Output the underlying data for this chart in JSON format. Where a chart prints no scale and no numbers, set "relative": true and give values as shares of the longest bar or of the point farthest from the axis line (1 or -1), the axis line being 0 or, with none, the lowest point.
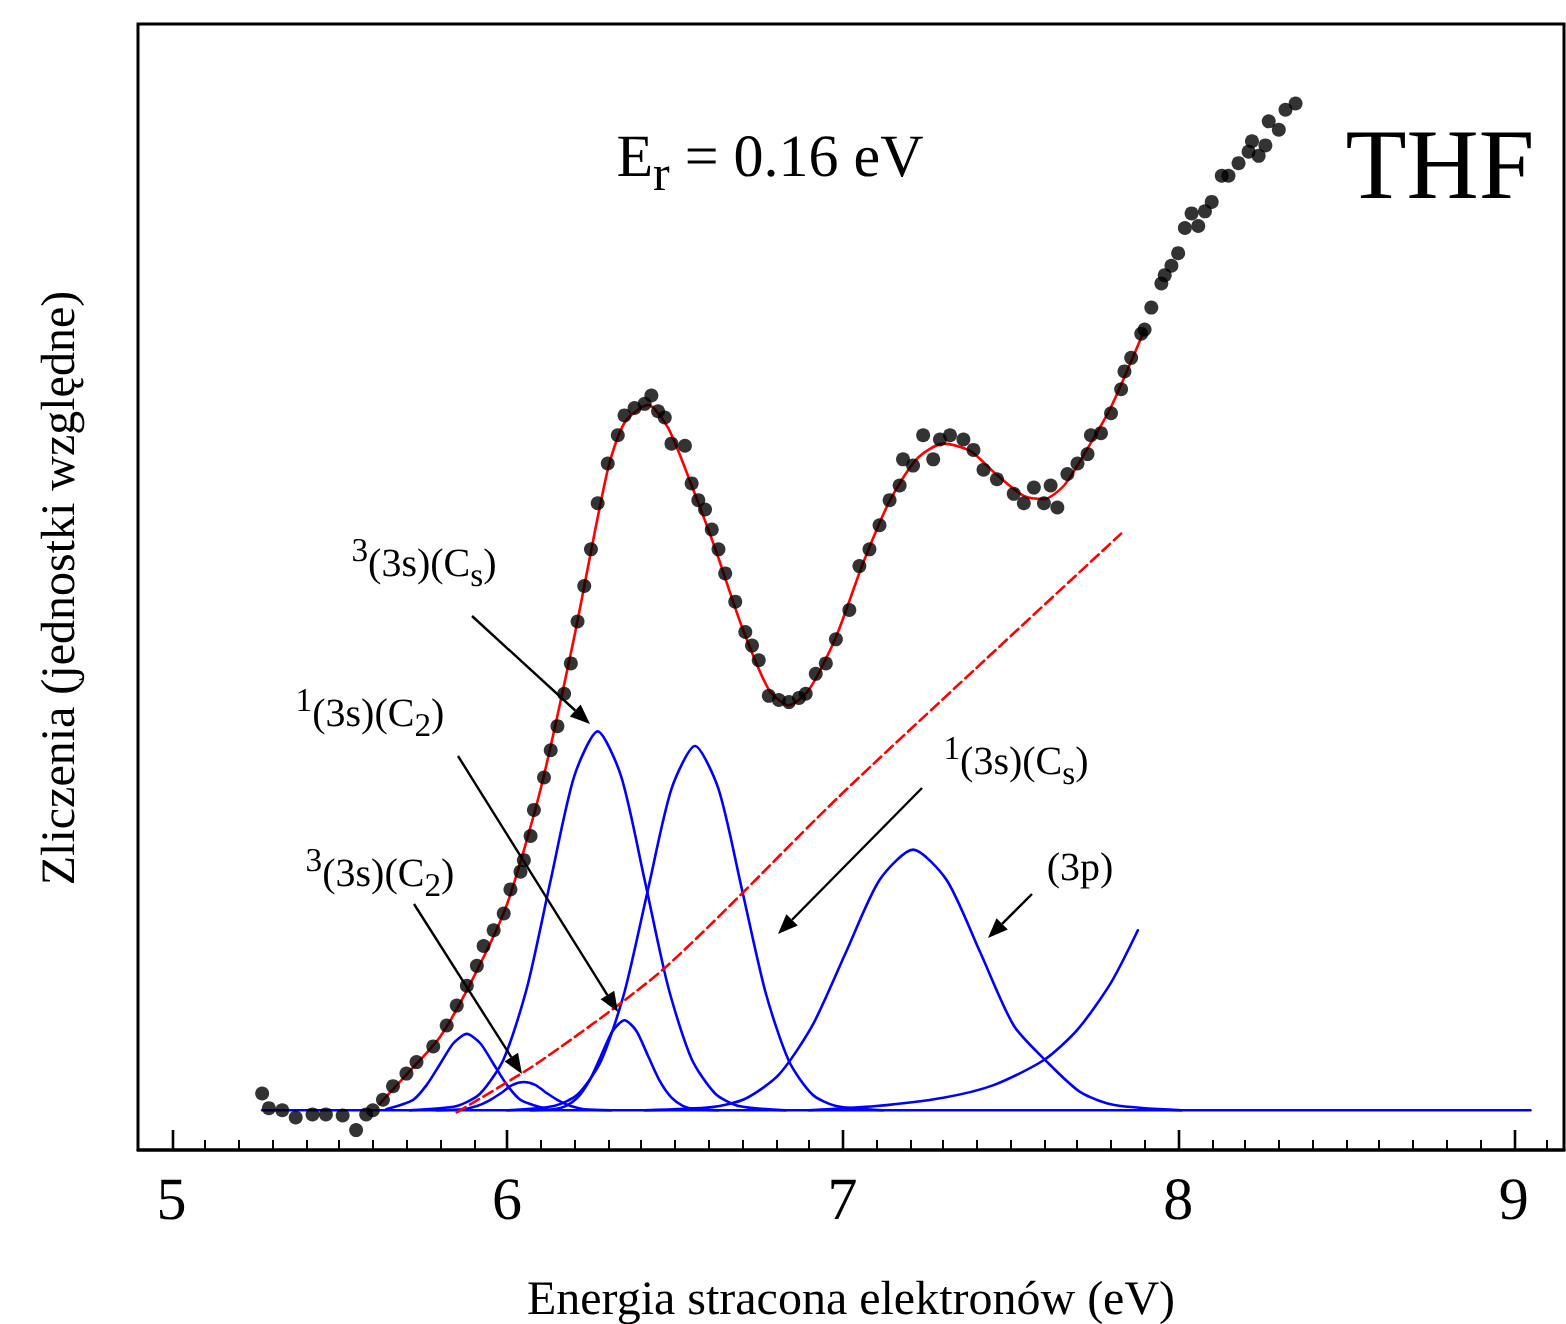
{
  "chart_data": {
    "type": "scatter",
    "relative": true,
    "xlabel": "Energia stracona elektronów (eV)",
    "ylabel": "Zliczenia (jednostki względne)",
    "xlim": [
      4.9,
      9.15
    ],
    "xticks": [
      5,
      6,
      7,
      8,
      9
    ],
    "grid": false,
    "annotations": [
      "E$_{r}$ = 0.16 eV",
      "THF",
      "$^{3}$(3s)(C$_{s}$)",
      "$^{1}$(3s)(C$_{2}$)",
      "$^{3}$(3s)(C$_{2}$)",
      "$^{1}$(3s)(C$_{s}$)",
      "(3p)"
    ],
    "series": [
      {
        "type": "line",
        "color": "#0000ff",
        "marker": "none",
        "x": [
          5.27,
          9.05
        ],
        "values": [
          0.038,
          0.038
        ]
      },
      {
        "type": "line",
        "color": "#0000ff",
        "marker": "none",
        "x": [
          5.64,
          5.72,
          5.76,
          5.8,
          5.84,
          5.88,
          5.92,
          5.96,
          6.0,
          6.04,
          6.12
        ],
        "values": [
          0.039,
          0.048,
          0.062,
          0.082,
          0.102,
          0.111,
          0.102,
          0.082,
          0.062,
          0.048,
          0.039
        ]
      },
      {
        "type": "line",
        "color": "#0000ff",
        "marker": "none",
        "x": [
          5.79,
          5.87,
          5.91,
          5.945,
          5.98,
          6.015,
          6.05,
          6.085,
          6.12,
          6.155,
          6.19,
          6.23,
          6.31
        ],
        "values": [
          0.038,
          0.039,
          0.042,
          0.047,
          0.054,
          0.062,
          0.065,
          0.062,
          0.054,
          0.047,
          0.042,
          0.039,
          0.038
        ]
      },
      {
        "type": "line",
        "color": "#0000ff",
        "marker": "none",
        "x": [
          5.71,
          5.85,
          5.92,
          5.99,
          6.06,
          6.13,
          6.2,
          6.27,
          6.34,
          6.41,
          6.48,
          6.55,
          6.62,
          6.69,
          6.83
        ],
        "values": [
          0.038,
          0.042,
          0.054,
          0.087,
          0.156,
          0.258,
          0.357,
          0.4,
          0.357,
          0.258,
          0.156,
          0.087,
          0.054,
          0.042,
          0.038
        ]
      },
      {
        "type": "line",
        "color": "#0000ff",
        "marker": "none",
        "x": [
          6.07,
          6.14,
          6.175,
          6.21,
          6.245,
          6.28,
          6.315,
          6.35,
          6.385,
          6.42,
          6.455,
          6.49,
          6.525,
          6.56,
          6.63
        ],
        "values": [
          0.038,
          0.039,
          0.042,
          0.05,
          0.066,
          0.09,
          0.114,
          0.124,
          0.114,
          0.09,
          0.066,
          0.05,
          0.042,
          0.039,
          0.038
        ]
      },
      {
        "type": "line",
        "color": "#0000ff",
        "marker": "none",
        "x": [
          6.0,
          6.14,
          6.21,
          6.28,
          6.35,
          6.42,
          6.49,
          6.56,
          6.63,
          6.7,
          6.77,
          6.84,
          6.91,
          6.98,
          7.12
        ],
        "values": [
          0.038,
          0.042,
          0.053,
          0.085,
          0.151,
          0.249,
          0.345,
          0.386,
          0.345,
          0.249,
          0.151,
          0.085,
          0.053,
          0.042,
          0.038
        ]
      },
      {
        "type": "line",
        "color": "#0000ff",
        "marker": "none",
        "x": [
          6.41,
          6.61,
          6.71,
          6.81,
          6.91,
          7.01,
          7.11,
          7.21,
          7.31,
          7.41,
          7.51,
          7.61,
          7.71,
          7.81,
          8.01
        ],
        "values": [
          0.038,
          0.041,
          0.049,
          0.072,
          0.119,
          0.189,
          0.258,
          0.287,
          0.258,
          0.189,
          0.119,
          0.084,
          0.055,
          0.043,
          0.038
        ]
      },
      {
        "type": "line",
        "color": "#0000ff",
        "marker": "none",
        "x": [
          6.9,
          7.1,
          7.3,
          7.45,
          7.6,
          7.7,
          7.8,
          7.88
        ],
        "values": [
          0.038,
          0.042,
          0.05,
          0.062,
          0.086,
          0.115,
          0.16,
          0.21
        ]
      },
      {
        "type": "line",
        "color": "#ff0000",
        "marker": "none",
        "line_style": "dashed",
        "x": [
          5.85,
          6.1,
          6.47,
          6.99,
          7.4,
          7.83
        ],
        "values": [
          0.036,
          0.085,
          0.174,
          0.338,
          0.461,
          0.589
        ]
      },
      {
        "type": "line",
        "color": "#ff0000",
        "marker": "none",
        "x": [
          5.62,
          5.7,
          5.8,
          5.9,
          6.0,
          6.1,
          6.2,
          6.3,
          6.35,
          6.42,
          6.48,
          6.55,
          6.62,
          6.7,
          6.78,
          6.84,
          6.9,
          6.98,
          7.06,
          7.14,
          7.22,
          7.3,
          7.38,
          7.46,
          7.54,
          7.6,
          7.66,
          7.72,
          7.8,
          7.9
        ],
        "values": [
          0.044,
          0.072,
          0.108,
          0.165,
          0.235,
          0.345,
          0.49,
          0.65,
          0.695,
          0.712,
          0.69,
          0.635,
          0.575,
          0.5,
          0.44,
          0.425,
          0.44,
          0.49,
          0.56,
          0.62,
          0.66,
          0.675,
          0.668,
          0.645,
          0.625,
          0.622,
          0.635,
          0.665,
          0.71,
          0.784
        ]
      },
      {
        "color": "#000000",
        "marker": "circle",
        "x": [
          5.27,
          5.29,
          5.33,
          5.37,
          5.42,
          5.46,
          5.51,
          5.55,
          5.58,
          5.6,
          5.63,
          5.66,
          5.7,
          5.73,
          5.78,
          5.82,
          5.85,
          5.88,
          5.91,
          5.93,
          5.96,
          5.99,
          6.01,
          6.04,
          6.05,
          6.07,
          6.08,
          6.11,
          6.13,
          6.15,
          6.17,
          6.19,
          6.21,
          6.23,
          6.25,
          6.27,
          6.3,
          6.33,
          6.35,
          6.38,
          6.41,
          6.43,
          6.45,
          6.47,
          6.49,
          6.53,
          6.55,
          6.57,
          6.59,
          6.61,
          6.63,
          6.65,
          6.68,
          6.71,
          6.73,
          6.75,
          6.78,
          6.81,
          6.84,
          6.87,
          6.89,
          6.92,
          6.95,
          6.98,
          7.02,
          7.05,
          7.08,
          7.11,
          7.14,
          7.17,
          7.18,
          7.21,
          7.24,
          7.27,
          7.29,
          7.32,
          7.36,
          7.39,
          7.42,
          7.46,
          7.51,
          7.54,
          7.57,
          7.6,
          7.62,
          7.64,
          7.67,
          7.7,
          7.73,
          7.74,
          7.77,
          7.8,
          7.83,
          7.84,
          7.86,
          7.89,
          7.9,
          7.92,
          7.95,
          7.96,
          7.98,
          8.0,
          8.02,
          8.04,
          8.06,
          8.08,
          8.1,
          8.13,
          8.15,
          8.18,
          8.21,
          8.22,
          8.24,
          8.26,
          8.27,
          8.3,
          8.32,
          8.35
        ],
        "values": [
          0.054,
          0.04,
          0.038,
          0.031,
          0.034,
          0.034,
          0.033,
          0.019,
          0.034,
          0.038,
          0.048,
          0.061,
          0.073,
          0.084,
          0.099,
          0.119,
          0.138,
          0.157,
          0.176,
          0.195,
          0.21,
          0.226,
          0.249,
          0.266,
          0.277,
          0.3,
          0.325,
          0.356,
          0.382,
          0.405,
          0.436,
          0.465,
          0.505,
          0.539,
          0.574,
          0.618,
          0.656,
          0.683,
          0.702,
          0.709,
          0.713,
          0.721,
          0.706,
          0.7,
          0.675,
          0.673,
          0.637,
          0.621,
          0.612,
          0.593,
          0.574,
          0.551,
          0.524,
          0.495,
          0.482,
          0.468,
          0.434,
          0.43,
          0.428,
          0.432,
          0.436,
          0.455,
          0.465,
          0.488,
          0.516,
          0.558,
          0.574,
          0.597,
          0.621,
          0.635,
          0.66,
          0.654,
          0.683,
          0.66,
          0.679,
          0.683,
          0.679,
          0.669,
          0.65,
          0.641,
          0.627,
          0.618,
          0.633,
          0.618,
          0.635,
          0.614,
          0.646,
          0.656,
          0.665,
          0.683,
          0.685,
          0.704,
          0.727,
          0.744,
          0.757,
          0.78,
          0.784,
          0.805,
          0.828,
          0.836,
          0.845,
          0.857,
          0.881,
          0.895,
          0.883,
          0.897,
          0.906,
          0.931,
          0.931,
          0.943,
          0.954,
          0.964,
          0.95,
          0.96,
          0.983,
          0.975,
          0.994,
          1.0
        ]
      }
    ]
  }
}
